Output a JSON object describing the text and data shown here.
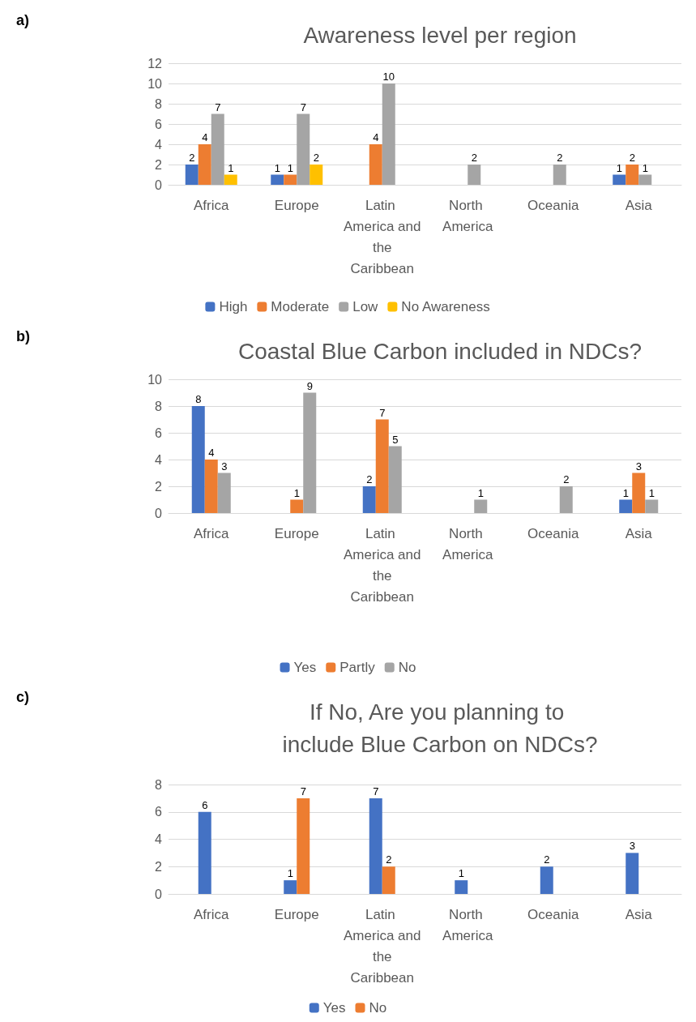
{
  "chart_data": [
    {
      "type": "bar",
      "title": "Awareness level per region",
      "annotations": [
        "a)"
      ],
      "categories": [
        "Africa",
        "Europe",
        "Latin America and the Caribbean",
        "North America",
        "Oceania",
        "Asia"
      ],
      "series": [
        {
          "name": "High",
          "color": "#4472c4",
          "values": [
            2,
            1,
            0,
            0,
            0,
            1
          ],
          "value_labels": [
            "2",
            "1",
            null,
            null,
            null,
            "1"
          ]
        },
        {
          "name": "Moderate",
          "color": "#ed7d31",
          "values": [
            4,
            1,
            4,
            0,
            0,
            2
          ],
          "value_labels": [
            "4",
            "1",
            "4",
            null,
            null,
            "2"
          ]
        },
        {
          "name": "Low",
          "color": "#a5a5a5",
          "values": [
            7,
            7,
            10,
            2,
            2,
            1
          ],
          "value_labels": [
            "7",
            "7",
            "10",
            "2",
            "2",
            "1"
          ]
        },
        {
          "name": "No Awareness",
          "color": "#ffc000",
          "values": [
            1,
            2,
            0,
            0,
            0,
            0
          ],
          "value_labels": [
            "1",
            "2",
            null,
            null,
            null,
            null
          ]
        }
      ],
      "ylim": [
        0,
        12
      ],
      "yticks": [
        0,
        2,
        4,
        6,
        8,
        10,
        12
      ],
      "grid": "y",
      "legend": "bottom"
    },
    {
      "type": "bar",
      "title": "Coastal Blue Carbon included in NDCs?",
      "annotations": [
        "b)"
      ],
      "categories": [
        "Africa",
        "Europe",
        "Latin America and the Caribbean",
        "North America",
        "Oceania",
        "Asia"
      ],
      "series": [
        {
          "name": "Yes",
          "color": "#4472c4",
          "values": [
            8,
            0,
            2,
            0,
            0,
            1
          ],
          "value_labels": [
            "8",
            null,
            "2",
            null,
            null,
            "1"
          ]
        },
        {
          "name": "Partly",
          "color": "#ed7d31",
          "values": [
            4,
            1,
            7,
            0,
            0,
            3
          ],
          "value_labels": [
            "4",
            "1",
            "7",
            null,
            null,
            "3"
          ]
        },
        {
          "name": "No",
          "color": "#a5a5a5",
          "values": [
            3,
            9,
            5,
            1,
            2,
            1
          ],
          "value_labels": [
            "3",
            "9",
            "5",
            "1",
            "2",
            "1"
          ]
        }
      ],
      "ylim": [
        0,
        10
      ],
      "yticks": [
        0,
        2,
        4,
        6,
        8,
        10
      ],
      "grid": "y",
      "legend": "bottom"
    },
    {
      "type": "bar",
      "title": "If No, Are you planning to include Blue Carbon on NDCs?",
      "annotations": [
        "c)"
      ],
      "categories": [
        "Africa",
        "Europe",
        "Latin America and the Caribbean",
        "North America",
        "Oceania",
        "Asia"
      ],
      "series": [
        {
          "name": "Yes",
          "color": "#4472c4",
          "values": [
            6,
            1,
            7,
            1,
            2,
            3
          ],
          "value_labels": [
            "6",
            "1",
            "7",
            "1",
            "2",
            "3"
          ]
        },
        {
          "name": "No",
          "color": "#ed7d31",
          "values": [
            0,
            7,
            2,
            0,
            0,
            0
          ],
          "value_labels": [
            null,
            "7",
            "2",
            null,
            null,
            null
          ]
        }
      ],
      "ylim": [
        0,
        8
      ],
      "yticks": [
        0,
        2,
        4,
        6,
        8
      ],
      "grid": "y",
      "legend": "bottom"
    }
  ]
}
